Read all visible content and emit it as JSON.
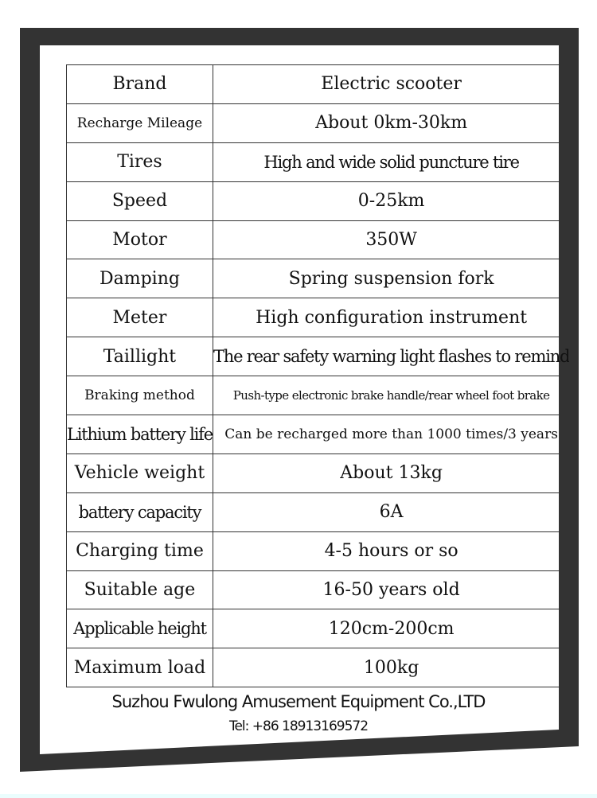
{
  "rows": [
    {
      "label": "Brand",
      "value": "Electric scooter"
    },
    {
      "label": "Recharge Mileage",
      "value": "About 0km-30km"
    },
    {
      "label": "Tires",
      "value": "High and wide solid puncture tire"
    },
    {
      "label": "Speed",
      "value": "0-25km"
    },
    {
      "label": "Motor",
      "value": "350W"
    },
    {
      "label": "Damping",
      "value": "Spring suspension fork"
    },
    {
      "label": "Meter",
      "value": "High configuration instrument"
    },
    {
      "label": "Taillight",
      "value": "The rear safety warning light flashes to remind"
    },
    {
      "label": "Braking method",
      "value": "Push-type electronic brake handle/rear wheel foot brake"
    },
    {
      "label": "Lithium battery life",
      "value": "Can be recharged more than 1000 times/3 years"
    },
    {
      "label": "Vehicle weight",
      "value": "About 13kg"
    },
    {
      "label": "battery capacity",
      "value": "6A"
    },
    {
      "label": "Charging time",
      "value": "4-5 hours or so"
    },
    {
      "label": "Suitable age",
      "value": "16-50 years old"
    },
    {
      "label": "Applicable height",
      "value": "120cm-200cm"
    },
    {
      "label": "Maximum load",
      "value": "100kg"
    }
  ],
  "footer": {
    "company": "Suzhou Fwulong Amusement Equipment Co.,LTD",
    "tel": "Tel: +86 18913169572"
  },
  "colors": {
    "frame": "#333333",
    "background": "#ffffff"
  }
}
